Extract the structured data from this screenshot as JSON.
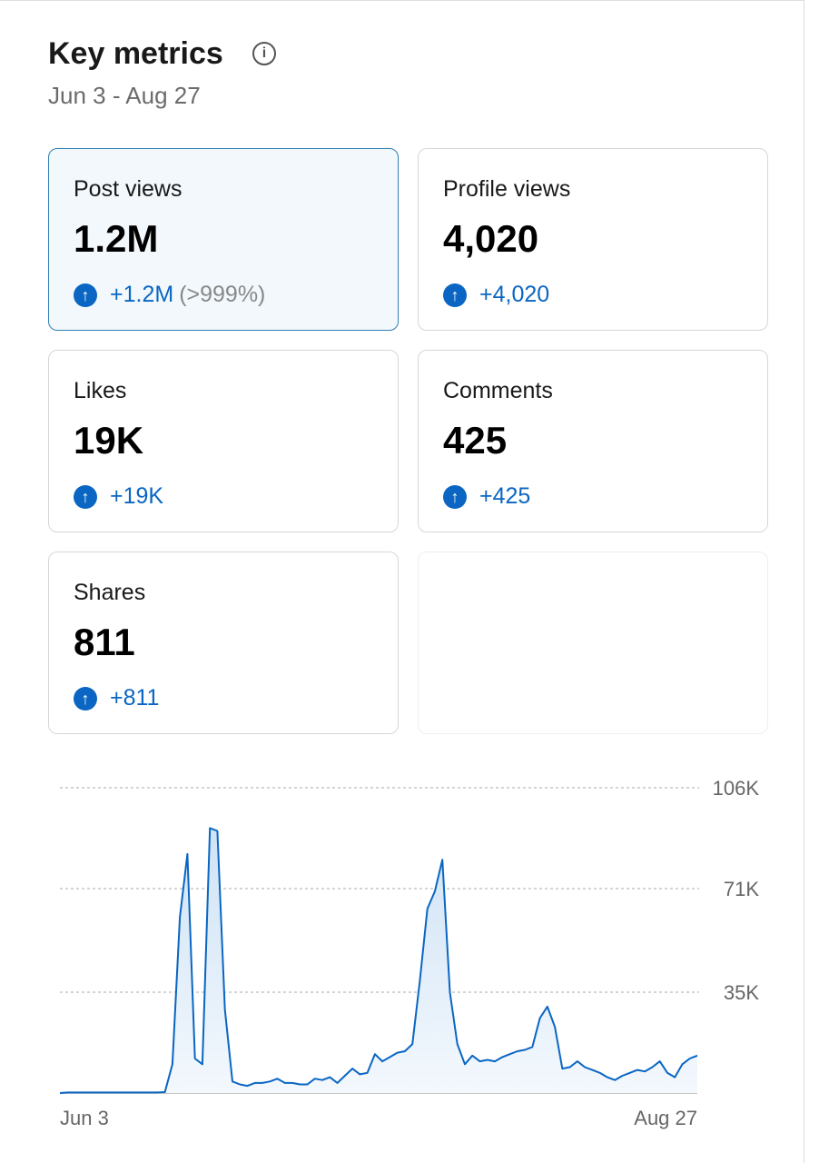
{
  "header": {
    "title": "Key metrics",
    "subtitle": "Jun 3 - Aug 27"
  },
  "metrics": [
    {
      "label": "Post views",
      "value": "1.2M",
      "change": "+1.2M",
      "change_pct": "(>999%)"
    },
    {
      "label": "Profile views",
      "value": "4,020",
      "change": "+4,020"
    },
    {
      "label": "Likes",
      "value": "19K",
      "change": "+19K"
    },
    {
      "label": "Comments",
      "value": "425",
      "change": "+425"
    },
    {
      "label": "Shares",
      "value": "811",
      "change": "+811"
    }
  ],
  "chart_data": {
    "type": "line",
    "categories": [
      "Jun 3",
      null,
      null,
      null,
      null,
      null,
      null,
      null,
      null,
      null,
      null,
      null,
      null,
      null,
      null,
      null,
      null,
      null,
      null,
      null,
      null,
      null,
      null,
      null,
      null,
      null,
      null,
      null,
      null,
      null,
      null,
      null,
      null,
      null,
      null,
      null,
      null,
      null,
      null,
      null,
      null,
      null,
      null,
      null,
      null,
      null,
      null,
      null,
      null,
      null,
      null,
      null,
      null,
      null,
      null,
      null,
      null,
      null,
      null,
      null,
      null,
      null,
      null,
      null,
      null,
      null,
      null,
      null,
      null,
      null,
      null,
      null,
      null,
      null,
      null,
      null,
      null,
      null,
      null,
      null,
      null,
      null,
      null,
      null,
      null,
      "Aug 27"
    ],
    "series": [
      {
        "color": "#0a66c2",
        "values": [
          0,
          200,
          200,
          200,
          200,
          200,
          200,
          200,
          200,
          200,
          200,
          200,
          200,
          200,
          300,
          10000,
          61000,
          83000,
          12000,
          10000,
          92000,
          91000,
          29000,
          4000,
          3000,
          2500,
          3500,
          3500,
          4000,
          5000,
          3500,
          3500,
          3000,
          3000,
          5000,
          4500,
          5500,
          3500,
          6000,
          8500,
          6500,
          7000,
          13500,
          11000,
          12500,
          14000,
          14500,
          17000,
          39000,
          64000,
          70000,
          81000,
          35000,
          17000,
          10000,
          13000,
          11000,
          11500,
          11000,
          12500,
          13500,
          14500,
          15000,
          16000,
          26000,
          30000,
          23000,
          8500,
          9000,
          11000,
          9000,
          8000,
          7000,
          5500,
          4500,
          6000,
          7000,
          8000,
          7500,
          9000,
          11000,
          7000,
          5500,
          10000,
          12000,
          13000
        ]
      }
    ],
    "ylim": [
      0,
      106000
    ],
    "yticks": [
      {
        "value": 35000,
        "label": "35K"
      },
      {
        "value": 71000,
        "label": "71K"
      },
      {
        "value": 106000,
        "label": "106K"
      }
    ],
    "grid": true
  }
}
